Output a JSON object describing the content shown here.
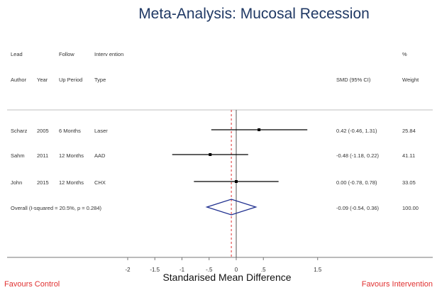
{
  "chart_data": {
    "type": "forest",
    "title": "Meta-Analysis: Mucosal Recession",
    "xlabel": "Standarised Mean Difference",
    "favours_left": "Favours Control",
    "favours_right": "Favours Intervention",
    "xlim": [
      -2,
      1.5
    ],
    "xticks": [
      "-2",
      "-1.5",
      "-1",
      "-.5",
      "0",
      ".5",
      "1.5"
    ],
    "header": {
      "row1": {
        "lead": "Lead",
        "follow": "Follow",
        "intervention": "Interv ention",
        "pct": "%"
      },
      "row2": {
        "author": "Author",
        "year": "Year",
        "period": "Up Period",
        "type": "Type",
        "smd": "SMD (95% CI)",
        "weight": "Weight"
      }
    },
    "studies": [
      {
        "author": "Scharz",
        "year": "2005",
        "period": "6 Months",
        "type": "Laser",
        "smd": 0.42,
        "lower": -0.46,
        "upper": 1.31,
        "ci_text": "0.42 (-0.46, 1.31)",
        "weight": "25.84"
      },
      {
        "author": "Sahm",
        "year": "2011",
        "period": "12 Months",
        "type": "AAD",
        "smd": -0.48,
        "lower": -1.18,
        "upper": 0.22,
        "ci_text": "-0.48 (-1.18, 0.22)",
        "weight": "41.11"
      },
      {
        "author": "John",
        "year": "2015",
        "period": "12 Months",
        "type": "CHX",
        "smd": 0.0,
        "lower": -0.78,
        "upper": 0.78,
        "ci_text": "0.00 (-0.78, 0.78)",
        "weight": "33.05"
      }
    ],
    "overall": {
      "label": "Overall  (I-squared = 20.5%, p = 0.284)",
      "smd": -0.09,
      "lower": -0.54,
      "upper": 0.36,
      "ci_text": "-0.09 (-0.54, 0.36)",
      "weight": "100.00"
    },
    "colors": {
      "diamond": "#1f2f8f",
      "ref_line": "#555555",
      "overall_line": "#e03030",
      "favours": "#e03030",
      "title": "#1f3864"
    }
  }
}
